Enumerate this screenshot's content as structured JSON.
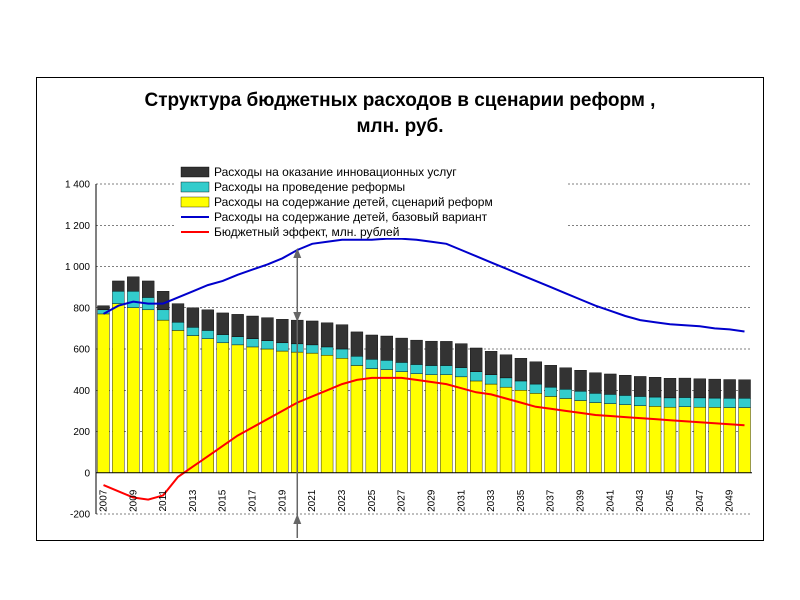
{
  "chart_data": {
    "type": "bar",
    "title": "Структура бюджетных расходов в сценарии реформ ,",
    "subtitle": "млн. руб.",
    "years": [
      2007,
      2008,
      2009,
      2010,
      2011,
      2012,
      2013,
      2014,
      2015,
      2016,
      2017,
      2018,
      2019,
      2020,
      2021,
      2022,
      2023,
      2024,
      2025,
      2026,
      2027,
      2028,
      2029,
      2030,
      2031,
      2032,
      2033,
      2034,
      2035,
      2036,
      2037,
      2038,
      2039,
      2040,
      2041,
      2042,
      2043,
      2044,
      2045,
      2046,
      2047,
      2048,
      2049,
      2050
    ],
    "x_tick_labels": [
      "2007",
      "2009",
      "2011",
      "2013",
      "2015",
      "2017",
      "2019",
      "2021",
      "2023",
      "2025",
      "2027",
      "2029",
      "2031",
      "2033",
      "2035",
      "2037",
      "2039",
      "2041",
      "2043",
      "2045",
      "2047",
      "2049"
    ],
    "y_tick_labels": [
      "1 400",
      "1 200",
      "1 000",
      "800",
      "600",
      "400",
      "200",
      "0",
      "-200"
    ],
    "ylim": [
      -200,
      1400
    ],
    "y_ticks": [
      1400,
      1200,
      1000,
      800,
      600,
      400,
      200,
      0,
      -200
    ],
    "legend_placement": "top-center",
    "series": [
      {
        "name": "Расходы на оказание инновационных услуг",
        "kind": "stacked-bar",
        "color": "#333333",
        "values": [
          20,
          50,
          70,
          80,
          90,
          90,
          95,
          100,
          105,
          108,
          110,
          112,
          114,
          115,
          116,
          117,
          118,
          118,
          118,
          118,
          118,
          118,
          118,
          117,
          116,
          115,
          114,
          112,
          110,
          108,
          106,
          104,
          102,
          100,
          99,
          98,
          97,
          96,
          95,
          94,
          93,
          92,
          91,
          90
        ]
      },
      {
        "name": "Расходы на проведение реформы",
        "kind": "stacked-bar",
        "color": "#33CCCC",
        "values": [
          20,
          60,
          80,
          60,
          50,
          40,
          40,
          40,
          40,
          40,
          40,
          40,
          40,
          40,
          40,
          40,
          45,
          45,
          45,
          45,
          45,
          45,
          45,
          45,
          45,
          45,
          45,
          45,
          45,
          45,
          45,
          45,
          45,
          45,
          45,
          45,
          45,
          45,
          45,
          45,
          45,
          45,
          45,
          45
        ]
      },
      {
        "name": "Расходы на содержание детей, сценарий реформ",
        "kind": "stacked-bar",
        "color": "#FFFF00",
        "values": [
          770,
          820,
          800,
          790,
          740,
          690,
          665,
          650,
          630,
          620,
          610,
          600,
          590,
          585,
          580,
          570,
          555,
          520,
          505,
          500,
          490,
          480,
          475,
          475,
          465,
          445,
          430,
          415,
          400,
          385,
          370,
          360,
          350,
          340,
          335,
          330,
          325,
          322,
          318,
          320,
          318,
          317,
          316,
          316
        ]
      },
      {
        "name": "Расходы на содержание детей, базовый вариант",
        "kind": "line",
        "color": "#0000CC",
        "values": [
          770,
          810,
          830,
          820,
          820,
          850,
          880,
          910,
          930,
          960,
          985,
          1010,
          1040,
          1080,
          1110,
          1120,
          1130,
          1130,
          1130,
          1135,
          1135,
          1130,
          1120,
          1110,
          1080,
          1050,
          1020,
          990,
          960,
          930,
          900,
          870,
          840,
          810,
          785,
          760,
          740,
          730,
          720,
          715,
          710,
          700,
          695,
          685
        ]
      },
      {
        "name": "Бюджетный эффект, млн. рублей",
        "kind": "line",
        "color": "#FF0000",
        "values": [
          -60,
          -90,
          -120,
          -130,
          -110,
          -20,
          30,
          80,
          130,
          180,
          220,
          260,
          300,
          340,
          370,
          400,
          430,
          450,
          460,
          460,
          460,
          450,
          440,
          430,
          410,
          390,
          380,
          360,
          340,
          320,
          310,
          300,
          290,
          280,
          275,
          270,
          265,
          260,
          255,
          250,
          245,
          240,
          235,
          230
        ]
      }
    ],
    "annotations": [
      {
        "type": "double-arrow",
        "year": 2020
      }
    ]
  }
}
